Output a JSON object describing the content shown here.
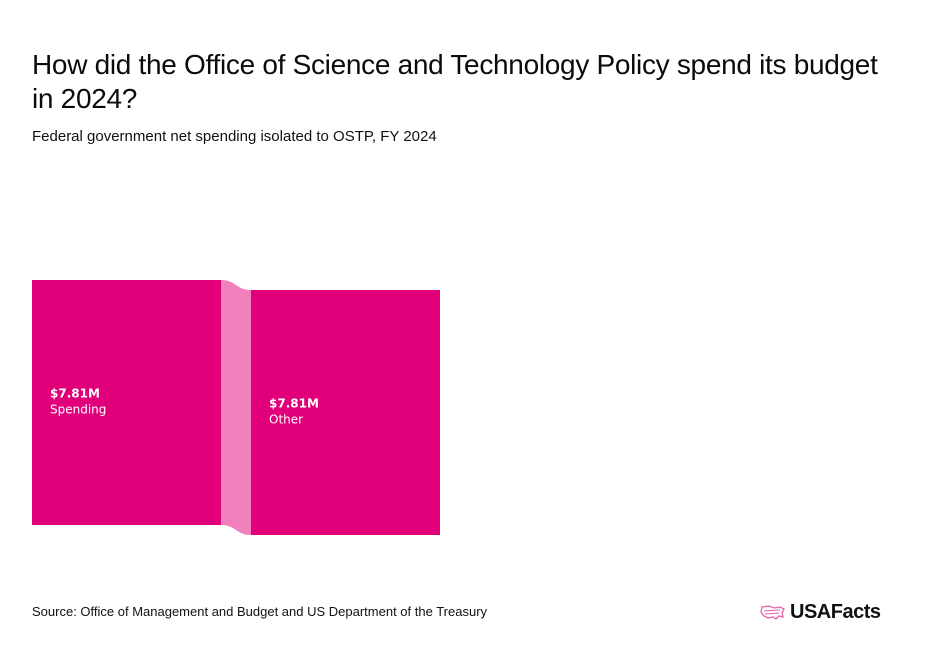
{
  "title": "How did the Office of Science and Technology Policy spend its budget in 2024?",
  "subtitle": "Federal government net spending isolated to OSTP, FY 2024",
  "source": "Source: Office of Management and Budget and US Department of the Treasury",
  "logo": "USAFacts",
  "colors": {
    "node": "#e2007a",
    "link": "#f081bd",
    "label": "#ffffff"
  },
  "chart_data": {
    "type": "sankey",
    "nodes": [
      {
        "id": "spending",
        "label": "Spending",
        "value_label": "$7.81M",
        "value": 7.81
      },
      {
        "id": "other",
        "label": "Other",
        "value_label": "$7.81M",
        "value": 7.81
      }
    ],
    "links": [
      {
        "source": "spending",
        "target": "other",
        "value": 7.81
      }
    ],
    "unit": "million USD"
  }
}
